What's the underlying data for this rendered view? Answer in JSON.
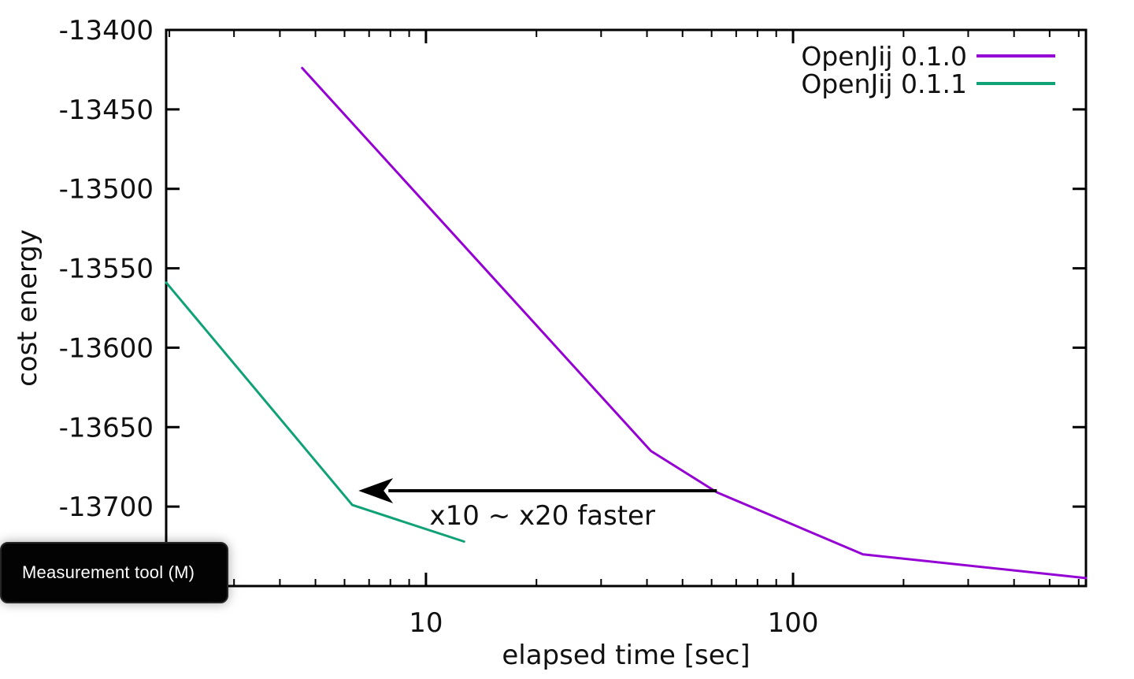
{
  "tooltip": {
    "label": "Measurement tool (M)",
    "bg_color": "#030303",
    "text_color": "#ffffff"
  },
  "chart_data": {
    "type": "line",
    "title": "",
    "xlabel": "elapsed time [sec]",
    "ylabel": "cost energy",
    "x_scale": "log",
    "xlim": [
      1.96,
      628
    ],
    "ylim": [
      -13750,
      -13400
    ],
    "grid": false,
    "x_major_ticks": [
      10,
      100
    ],
    "x_major_tick_labels": [
      "10",
      "100"
    ],
    "x_minor_ticks": [
      2,
      3,
      4,
      5,
      6,
      7,
      8,
      9,
      20,
      30,
      40,
      50,
      60,
      70,
      80,
      90,
      200,
      300,
      400,
      500,
      600
    ],
    "y_ticks": [
      -13400,
      -13450,
      -13500,
      -13550,
      -13600,
      -13650,
      -13700
    ],
    "y_tick_labels": [
      "-13400",
      "-13450",
      "-13500",
      "-13550",
      "-13600",
      "-13650",
      "-13700"
    ],
    "legend_position": "top-right",
    "axis_color": "#000000",
    "series": [
      {
        "name": "OpenJij 0.1.0",
        "color": "#9400d3",
        "points": [
          [
            4.6,
            -13424
          ],
          [
            41,
            -13665
          ],
          [
            62,
            -13691
          ],
          [
            155,
            -13730
          ],
          [
            628,
            -13745
          ]
        ]
      },
      {
        "name": "OpenJij 0.1.1",
        "color": "#10a176",
        "points": [
          [
            1.96,
            -13559
          ],
          [
            6.3,
            -13699
          ],
          [
            12.7,
            -13722
          ]
        ]
      }
    ],
    "annotation": {
      "text": "x10 ~ x20 faster",
      "arrow_from_x": 62,
      "arrow_to_x": 6.55,
      "arrow_y": -13690,
      "color": "#000000"
    }
  }
}
